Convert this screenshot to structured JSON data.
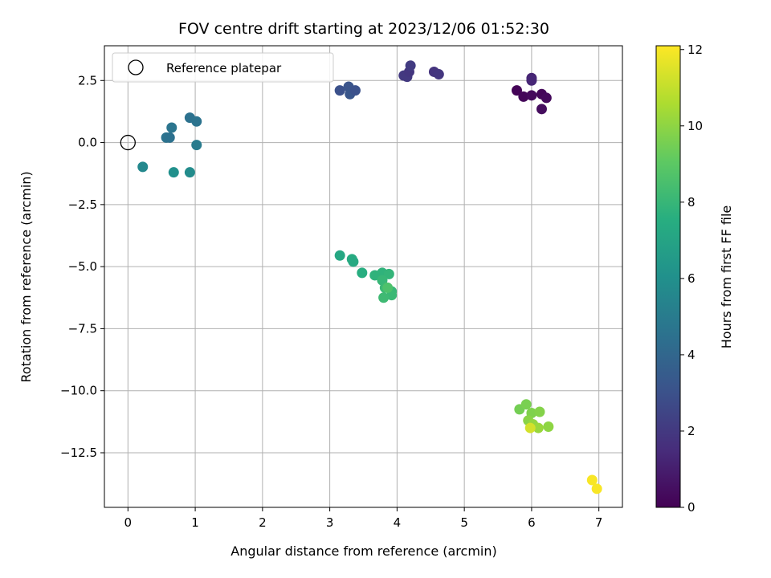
{
  "chart_data": {
    "type": "scatter",
    "title": "FOV centre drift starting at 2023/12/06 01:52:30",
    "xlabel": "Angular distance from reference (arcmin)",
    "ylabel": "Rotation from reference (arcmin)",
    "xlim": [
      -0.35,
      7.35
    ],
    "ylim": [
      -14.7,
      3.9
    ],
    "xticks": [
      0,
      1,
      2,
      3,
      4,
      5,
      6,
      7
    ],
    "yticks": [
      2.5,
      0.0,
      -2.5,
      -5.0,
      -7.5,
      -10.0,
      -12.5
    ],
    "xtick_labels": [
      "0",
      "1",
      "2",
      "3",
      "4",
      "5",
      "6",
      "7"
    ],
    "ytick_labels": [
      "2.5",
      "0.0",
      "−2.5",
      "−5.0",
      "−7.5",
      "−10.0",
      "−12.5"
    ],
    "grid": true,
    "legend": {
      "placement": "top-left",
      "entries": [
        "Reference platepar"
      ]
    },
    "reference_point": {
      "x": 0,
      "y": 0
    },
    "colorbar": {
      "label": "Hours from first FF file",
      "range": [
        0,
        12.1
      ],
      "ticks": [
        0,
        2,
        4,
        6,
        8,
        10,
        12
      ],
      "tick_labels": [
        "0",
        "2",
        "4",
        "6",
        "8",
        "10",
        "12"
      ],
      "colormap": "viridis"
    },
    "points": [
      {
        "x": 5.78,
        "y": 2.1,
        "c": 0.1
      },
      {
        "x": 5.88,
        "y": 1.85,
        "c": 0.2
      },
      {
        "x": 6.0,
        "y": 1.9,
        "c": 0.3
      },
      {
        "x": 6.15,
        "y": 1.95,
        "c": 0.2
      },
      {
        "x": 6.22,
        "y": 1.8,
        "c": 0.3
      },
      {
        "x": 6.15,
        "y": 1.35,
        "c": 0.4
      },
      {
        "x": 6.0,
        "y": 2.6,
        "c": 1.2
      },
      {
        "x": 6.0,
        "y": 2.5,
        "c": 1.3
      },
      {
        "x": 4.1,
        "y": 2.7,
        "c": 2.0
      },
      {
        "x": 4.15,
        "y": 2.65,
        "c": 2.0
      },
      {
        "x": 4.18,
        "y": 2.85,
        "c": 1.9
      },
      {
        "x": 4.2,
        "y": 3.1,
        "c": 2.1
      },
      {
        "x": 4.55,
        "y": 2.85,
        "c": 1.8
      },
      {
        "x": 4.62,
        "y": 2.75,
        "c": 1.9
      },
      {
        "x": 3.15,
        "y": 2.1,
        "c": 3.0
      },
      {
        "x": 3.28,
        "y": 2.25,
        "c": 3.1
      },
      {
        "x": 3.3,
        "y": 1.95,
        "c": 3.2
      },
      {
        "x": 3.38,
        "y": 2.1,
        "c": 3.0
      },
      {
        "x": 0.92,
        "y": 1.0,
        "c": 4.5
      },
      {
        "x": 1.02,
        "y": 0.85,
        "c": 4.6
      },
      {
        "x": 0.65,
        "y": 0.6,
        "c": 4.7
      },
      {
        "x": 0.57,
        "y": 0.2,
        "c": 4.6
      },
      {
        "x": 0.62,
        "y": 0.2,
        "c": 4.5
      },
      {
        "x": 1.02,
        "y": -0.1,
        "c": 5.0
      },
      {
        "x": 0.22,
        "y": -0.98,
        "c": 5.6
      },
      {
        "x": 0.68,
        "y": -1.2,
        "c": 6.0
      },
      {
        "x": 0.92,
        "y": -1.2,
        "c": 5.8
      },
      {
        "x": 3.15,
        "y": -4.55,
        "c": 7.2
      },
      {
        "x": 3.33,
        "y": -4.7,
        "c": 7.4
      },
      {
        "x": 3.35,
        "y": -4.8,
        "c": 7.3
      },
      {
        "x": 3.48,
        "y": -5.25,
        "c": 7.5
      },
      {
        "x": 3.67,
        "y": -5.35,
        "c": 7.8
      },
      {
        "x": 3.78,
        "y": -5.25,
        "c": 7.8
      },
      {
        "x": 3.88,
        "y": -5.3,
        "c": 7.9
      },
      {
        "x": 3.78,
        "y": -5.55,
        "c": 8.0
      },
      {
        "x": 3.82,
        "y": -5.85,
        "c": 8.1
      },
      {
        "x": 3.92,
        "y": -6.0,
        "c": 8.0
      },
      {
        "x": 3.92,
        "y": -6.15,
        "c": 8.1
      },
      {
        "x": 3.8,
        "y": -6.25,
        "c": 8.2
      },
      {
        "x": 3.86,
        "y": -5.85,
        "c": 8.6
      },
      {
        "x": 5.82,
        "y": -10.75,
        "c": 9.5
      },
      {
        "x": 5.92,
        "y": -10.55,
        "c": 9.6
      },
      {
        "x": 6.0,
        "y": -10.9,
        "c": 9.7
      },
      {
        "x": 6.12,
        "y": -10.85,
        "c": 9.8
      },
      {
        "x": 5.95,
        "y": -11.2,
        "c": 9.9
      },
      {
        "x": 6.02,
        "y": -11.35,
        "c": 10.1
      },
      {
        "x": 6.1,
        "y": -11.5,
        "c": 10.2
      },
      {
        "x": 6.25,
        "y": -11.45,
        "c": 10.0
      },
      {
        "x": 5.98,
        "y": -11.5,
        "c": 11.3
      },
      {
        "x": 6.9,
        "y": -13.6,
        "c": 12.0
      },
      {
        "x": 6.97,
        "y": -13.95,
        "c": 12.0
      }
    ]
  }
}
